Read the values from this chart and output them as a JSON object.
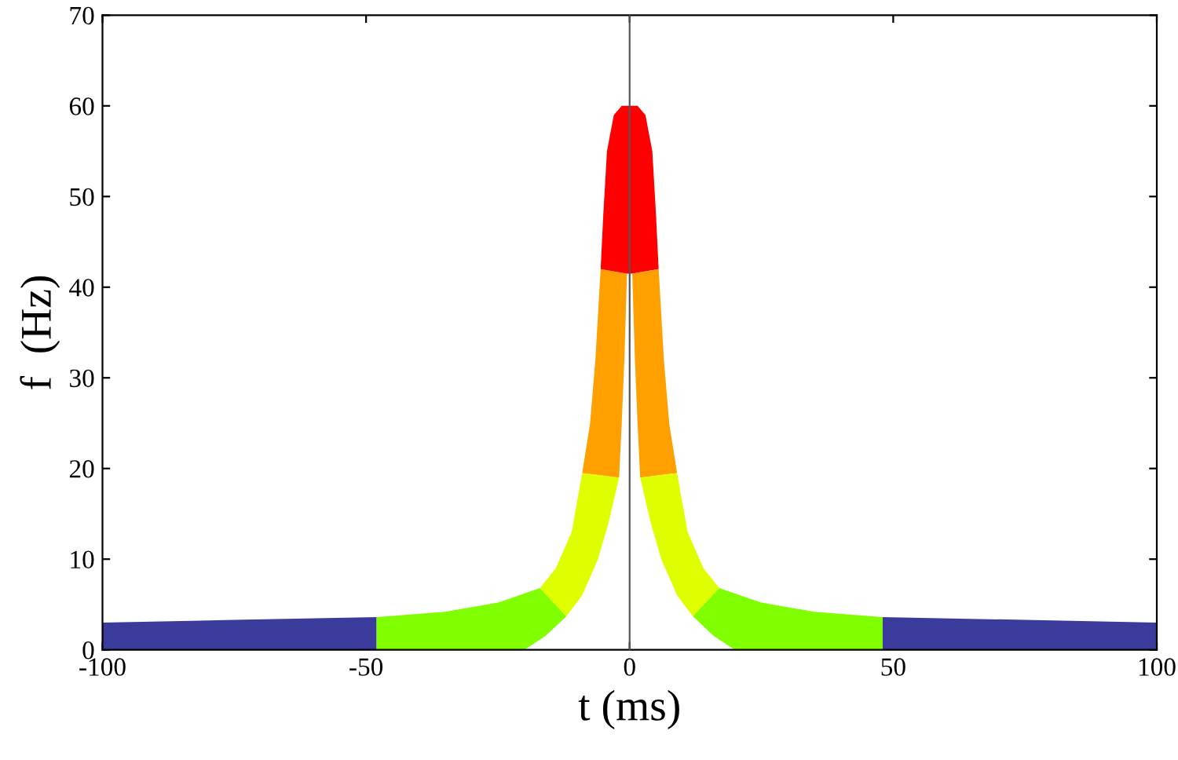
{
  "chart_data": {
    "type": "area",
    "xlabel": "t (ms)",
    "ylabel": "f  (Hz)",
    "xlim": [
      -100,
      100
    ],
    "ylim": [
      0,
      70
    ],
    "xticks": [
      -100,
      -50,
      0,
      50,
      100
    ],
    "yticks": [
      0,
      10,
      20,
      30,
      40,
      50,
      60,
      70
    ],
    "grid": false,
    "legend": false,
    "ref_lines": [
      {
        "axis": "x",
        "value": 0,
        "color": "#555555",
        "line_style": "solid"
      }
    ],
    "series": [
      {
        "color": "#3b3b9b",
        "x": [
          -100,
          -100,
          -75,
          -48,
          -48
        ],
        "values": [
          0,
          3.0,
          3.3,
          3.6,
          0
        ]
      },
      {
        "color": "#80ff00",
        "x": [
          -48,
          -48,
          -35,
          -25,
          -17,
          -12,
          -16,
          -20
        ],
        "values": [
          0,
          3.6,
          4.2,
          5.2,
          6.8,
          3.7,
          1.5,
          0
        ]
      },
      {
        "color": "#dfff00",
        "x": [
          -17,
          -14,
          -11,
          -9,
          -2,
          -4,
          -6,
          -9,
          -12
        ],
        "values": [
          6.8,
          9,
          13,
          19.5,
          19,
          14,
          10,
          6,
          3.7
        ]
      },
      {
        "color": "#ffa000",
        "x": [
          -9,
          -7.5,
          -6.5,
          -5.5,
          -0.5,
          -1,
          -1.5,
          -2
        ],
        "values": [
          19.5,
          25,
          32,
          42,
          41.5,
          32,
          25,
          19
        ]
      },
      {
        "color": "#ff0000",
        "x": [
          -5.5,
          -5,
          -4.3,
          -3,
          -1.5,
          0,
          0,
          -0.5
        ],
        "values": [
          42,
          48,
          55,
          59,
          60,
          60,
          41.5,
          41.5
        ]
      },
      {
        "color": "#ff0000",
        "x": [
          5.5,
          5,
          4.3,
          3,
          1.5,
          0,
          0,
          0.5
        ],
        "values": [
          42,
          48,
          55,
          59,
          60,
          60,
          41.5,
          41.5
        ]
      },
      {
        "color": "#ffa000",
        "x": [
          9,
          7.5,
          6.5,
          5.5,
          0.5,
          1,
          1.5,
          2
        ],
        "values": [
          19.5,
          25,
          32,
          42,
          41.5,
          32,
          25,
          19
        ]
      },
      {
        "color": "#dfff00",
        "x": [
          17,
          14,
          11,
          9,
          2,
          4,
          6,
          9,
          12
        ],
        "values": [
          6.8,
          9,
          13,
          19.5,
          19,
          14,
          10,
          6,
          3.7
        ]
      },
      {
        "color": "#80ff00",
        "x": [
          48,
          48,
          35,
          25,
          17,
          12,
          16,
          20
        ],
        "values": [
          0,
          3.6,
          4.2,
          5.2,
          6.8,
          3.7,
          1.5,
          0
        ]
      },
      {
        "color": "#3b3b9b",
        "x": [
          100,
          100,
          75,
          48,
          48
        ],
        "values": [
          0,
          3.0,
          3.3,
          3.6,
          0
        ]
      }
    ]
  }
}
